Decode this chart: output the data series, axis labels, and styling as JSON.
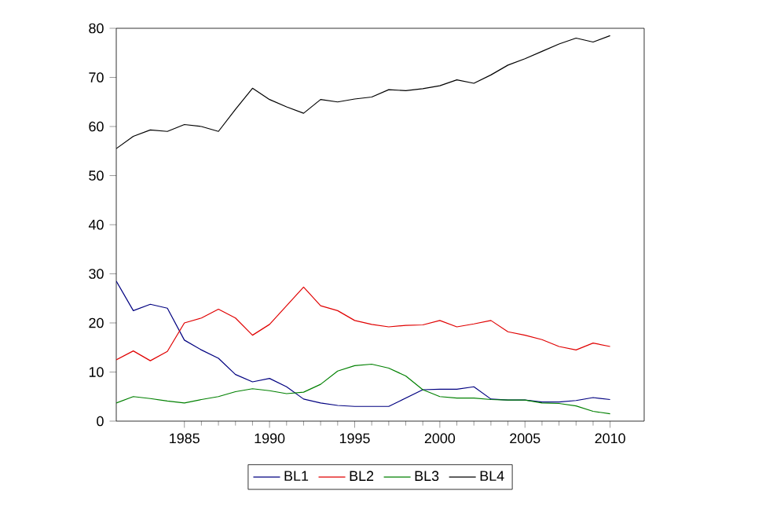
{
  "chart_data": {
    "type": "line",
    "x": [
      1981,
      1982,
      1983,
      1984,
      1985,
      1986,
      1987,
      1988,
      1989,
      1990,
      1991,
      1992,
      1993,
      1994,
      1995,
      1996,
      1997,
      1998,
      1999,
      2000,
      2001,
      2002,
      2003,
      2004,
      2005,
      2006,
      2007,
      2008,
      2009,
      2010
    ],
    "series": [
      {
        "name": "BL1",
        "color": "#000080",
        "values": [
          28.5,
          22.5,
          23.8,
          23,
          16.5,
          14.5,
          12.8,
          9.5,
          8.0,
          8.7,
          7,
          4.5,
          3.7,
          3.2,
          3,
          3,
          3,
          4.7,
          6.4,
          6.5,
          6.5,
          7,
          4.5,
          4.3,
          4.3,
          3.9,
          3.9,
          4.2,
          4.8,
          4.4
        ]
      },
      {
        "name": "BL2",
        "color": "#e00000",
        "values": [
          12.5,
          14.3,
          12.3,
          14.2,
          20,
          21,
          22.8,
          21,
          17.5,
          19.7,
          23.5,
          27.3,
          23.5,
          22.5,
          20.5,
          19.7,
          19.2,
          19.5,
          19.6,
          20.5,
          19.2,
          19.8,
          20.5,
          18.2,
          17.5,
          16.6,
          15.2,
          14.5,
          15.9,
          15.2
        ]
      },
      {
        "name": "BL3",
        "color": "#008000",
        "values": [
          3.7,
          5,
          4.6,
          4.1,
          3.7,
          4.4,
          5.0,
          6,
          6.6,
          6.2,
          5.6,
          5.9,
          7.5,
          10.2,
          11.3,
          11.6,
          10.8,
          9.2,
          6.4,
          5,
          4.7,
          4.7,
          4.4,
          4.3,
          4.3,
          3.7,
          3.6,
          3.1,
          2.0,
          1.5
        ]
      },
      {
        "name": "BL4",
        "color": "#000000",
        "values": [
          55.5,
          58,
          59.3,
          59,
          60.4,
          60,
          59,
          63.5,
          67.8,
          65.5,
          64,
          62.7,
          65.5,
          65,
          65.6,
          66,
          67.5,
          67.3,
          67.7,
          68.3,
          69.5,
          68.8,
          70.5,
          72.5,
          73.8,
          75.3,
          76.8,
          78,
          77.2,
          78.5
        ]
      }
    ],
    "xlim": [
      1981,
      2012
    ],
    "ylim": [
      0,
      80
    ],
    "xticks": [
      1985,
      1990,
      1995,
      2000,
      2005,
      2010
    ],
    "yticks": [
      0,
      10,
      20,
      30,
      40,
      50,
      60,
      70,
      80
    ],
    "legend": "bottom",
    "grid": false,
    "marker": "none",
    "line_style": "solid"
  }
}
